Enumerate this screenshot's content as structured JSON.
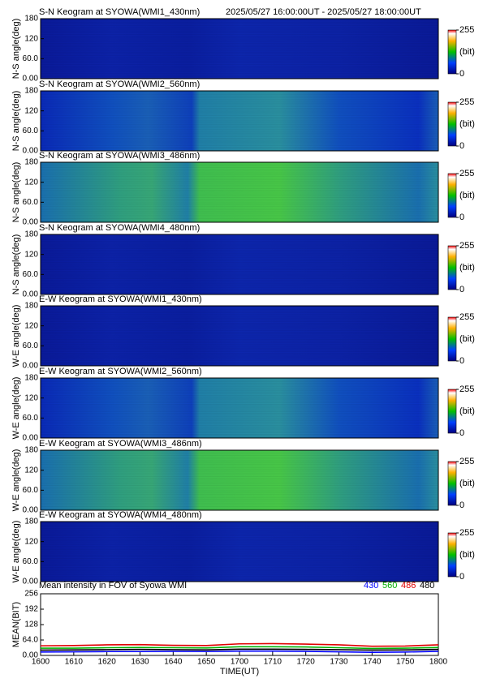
{
  "chart_data": [
    {
      "type": "keogram",
      "title": "S-N Keogram at SYOWA(WMI1_430nm)",
      "subtitle": "2025/05/27 16:00:00UT - 2025/05/27 18:00:00UT",
      "ylabel": "N-S angle(deg)",
      "ylim": [
        0,
        180
      ],
      "yticks": [
        {
          "value": 0,
          "label": "0.00"
        },
        {
          "value": 60,
          "label": "60.0"
        },
        120,
        180
      ],
      "colorbar_label": "(bit)",
      "clim": [
        0,
        255
      ],
      "cticks": [
        0,
        255
      ]
    },
    {
      "type": "keogram",
      "title": "S-N Keogram at SYOWA(WMI2_560nm)",
      "ylabel": "N-S angle(deg)",
      "ylim": [
        0,
        180
      ],
      "yticks": [
        {
          "value": 0,
          "label": "0.00"
        },
        {
          "value": 60,
          "label": "60.0"
        },
        120,
        180
      ],
      "colorbar_label": "(bit)",
      "clim": [
        0,
        255
      ],
      "cticks": [
        0,
        255
      ]
    },
    {
      "type": "keogram",
      "title": "S-N Keogram at SYOWA(WMI3_486nm)",
      "ylabel": "N-S angle(deg)",
      "ylim": [
        0,
        180
      ],
      "yticks": [
        {
          "value": 0,
          "label": "0.00"
        },
        {
          "value": 60,
          "label": "60.0"
        },
        120,
        180
      ],
      "colorbar_label": "(bit)",
      "clim": [
        0,
        255
      ],
      "cticks": [
        0,
        255
      ]
    },
    {
      "type": "keogram",
      "title": "S-N Keogram at SYOWA(WMI4_480nm)",
      "ylabel": "N-S angle(deg)",
      "ylim": [
        0,
        180
      ],
      "yticks": [
        {
          "value": 0,
          "label": "0.00"
        },
        {
          "value": 60,
          "label": "60.0"
        },
        120,
        180
      ],
      "colorbar_label": "(bit)",
      "clim": [
        0,
        255
      ],
      "cticks": [
        0,
        255
      ]
    },
    {
      "type": "keogram",
      "title": "E-W Keogram at SYOWA(WMI1_430nm)",
      "ylabel": "W-E angle(deg)",
      "ylim": [
        0,
        180
      ],
      "yticks": [
        {
          "value": 0,
          "label": "0.00"
        },
        {
          "value": 60,
          "label": "60.0"
        },
        120,
        180
      ],
      "colorbar_label": "(bit)",
      "clim": [
        0,
        255
      ],
      "cticks": [
        0,
        255
      ]
    },
    {
      "type": "keogram",
      "title": "E-W Keogram at SYOWA(WMI2_560nm)",
      "ylabel": "W-E angle(deg)",
      "ylim": [
        0,
        180
      ],
      "yticks": [
        {
          "value": 0,
          "label": "0.00"
        },
        {
          "value": 60,
          "label": "60.0"
        },
        120,
        180
      ],
      "colorbar_label": "(bit)",
      "clim": [
        0,
        255
      ],
      "cticks": [
        0,
        255
      ]
    },
    {
      "type": "keogram",
      "title": "E-W Keogram at SYOWA(WMI3_486nm)",
      "ylabel": "W-E angle(deg)",
      "ylim": [
        0,
        180
      ],
      "yticks": [
        {
          "value": 0,
          "label": "0.00"
        },
        {
          "value": 60,
          "label": "60.0"
        },
        120,
        180
      ],
      "colorbar_label": "(bit)",
      "clim": [
        0,
        255
      ],
      "cticks": [
        0,
        255
      ]
    },
    {
      "type": "keogram",
      "title": "E-W Keogram at SYOWA(WMI4_480nm)",
      "ylabel": "W-E angle(deg)",
      "ylim": [
        0,
        180
      ],
      "yticks": [
        {
          "value": 0,
          "label": "0.00"
        },
        {
          "value": 60,
          "label": "60.0"
        },
        120,
        180
      ],
      "colorbar_label": "(bit)",
      "clim": [
        0,
        255
      ],
      "cticks": [
        0,
        255
      ]
    },
    {
      "type": "line",
      "title": "Mean intensity in FOV of Syowa WMI",
      "ylabel": "MEAN(BIT)",
      "xlabel": "TIME(UT)",
      "x": [
        0,
        10,
        20,
        30,
        40,
        50,
        60,
        70,
        80,
        90,
        100,
        110,
        120
      ],
      "xlim": [
        0,
        120
      ],
      "xticks": [
        {
          "value": 0,
          "label": "1600"
        },
        {
          "value": 10,
          "label": "1610"
        },
        {
          "value": 20,
          "label": "1620"
        },
        {
          "value": 30,
          "label": "1630"
        },
        {
          "value": 40,
          "label": "1640"
        },
        {
          "value": 50,
          "label": "1650"
        },
        {
          "value": 60,
          "label": "1700"
        },
        {
          "value": 70,
          "label": "1710"
        },
        {
          "value": 80,
          "label": "1720"
        },
        {
          "value": 90,
          "label": "1730"
        },
        {
          "value": 100,
          "label": "1740"
        },
        {
          "value": 110,
          "label": "1750"
        },
        {
          "value": 120,
          "label": "1800"
        }
      ],
      "ylim": [
        0,
        256
      ],
      "yticks": [
        {
          "value": 0,
          "label": "0.00"
        },
        {
          "value": 64,
          "label": "64.0"
        },
        128,
        192,
        256
      ],
      "series": [
        {
          "name": "430",
          "color": "#0000ff",
          "values": [
            14,
            15,
            16,
            16,
            17,
            16,
            18,
            18,
            17,
            15,
            13,
            14,
            17
          ]
        },
        {
          "name": "560",
          "color": "#00b000",
          "values": [
            30,
            30,
            32,
            33,
            32,
            31,
            36,
            36,
            35,
            32,
            29,
            30,
            33
          ]
        },
        {
          "name": "486",
          "color": "#e00000",
          "values": [
            40,
            41,
            44,
            45,
            42,
            41,
            48,
            49,
            47,
            44,
            38,
            39,
            44
          ]
        },
        {
          "name": "480",
          "color": "#000000",
          "values": [
            22,
            23,
            24,
            25,
            24,
            23,
            26,
            26,
            25,
            24,
            22,
            23,
            25
          ]
        }
      ]
    }
  ]
}
